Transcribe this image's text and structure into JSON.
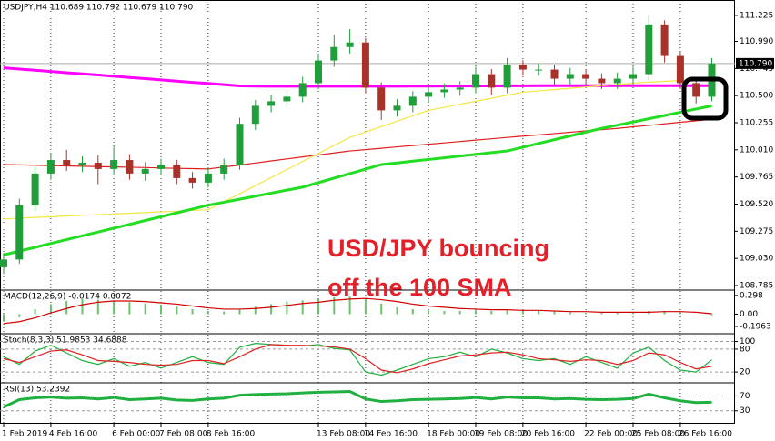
{
  "chart_data": [
    {
      "type": "candlestick",
      "title": "USDJPY,H4  110.689 110.792 110.679 110.790",
      "annotation": [
        "USD/JPY bouncing",
        "off the 100 SMA"
      ],
      "categories": [
        "1 Feb 2019",
        null,
        null,
        "4 Feb 16:00",
        null,
        null,
        null,
        "6 Feb 00:00",
        null,
        null,
        "7 Feb 08:00",
        null,
        null,
        "8 Feb 16:00",
        null,
        null,
        null,
        null,
        null,
        null,
        "13 Feb 08:00",
        null,
        null,
        "14 Feb 16:00",
        null,
        null,
        null,
        "18 Feb 00:00",
        null,
        null,
        "19 Feb 08:00",
        null,
        null,
        "20 Feb 16:00",
        null,
        null,
        null,
        "22 Feb 00:00",
        null,
        null,
        "25 Feb 08:00",
        null,
        null,
        "26 Feb 16:00",
        null,
        null
      ],
      "open": [
        108.95,
        109.02,
        109.51,
        109.796,
        109.918,
        109.877,
        109.894,
        109.837,
        109.918,
        109.796,
        109.837,
        109.877,
        109.755,
        109.714,
        109.796,
        109.877,
        110.245,
        110.408,
        110.449,
        110.49,
        110.613,
        110.817,
        110.939,
        110.98,
        110.572,
        110.367,
        110.408,
        110.49,
        110.531,
        110.555,
        110.572,
        110.694,
        110.572,
        110.776,
        110.735,
        110.735,
        110.653,
        110.694,
        110.653,
        110.613,
        110.653,
        110.694,
        111.143,
        110.858,
        110.613,
        110.49
      ],
      "high": [
        109.08,
        109.57,
        109.86,
        109.98,
        110.01,
        109.95,
        109.96,
        110.04,
        109.97,
        109.9,
        109.93,
        109.92,
        109.81,
        109.85,
        109.93,
        110.3,
        110.46,
        110.51,
        110.55,
        110.67,
        110.88,
        111.05,
        111.1,
        111.02,
        110.62,
        110.47,
        110.54,
        110.58,
        110.61,
        110.63,
        110.76,
        110.74,
        110.84,
        110.82,
        110.79,
        110.78,
        110.75,
        110.74,
        110.7,
        110.71,
        110.76,
        111.23,
        111.18,
        110.9,
        110.66,
        110.84
      ],
      "low": [
        108.89,
        108.98,
        109.46,
        109.74,
        109.82,
        109.81,
        109.7,
        109.78,
        109.74,
        109.73,
        109.78,
        109.7,
        109.66,
        109.67,
        109.74,
        109.83,
        110.19,
        110.35,
        110.39,
        110.44,
        110.56,
        110.76,
        110.88,
        110.52,
        110.28,
        110.31,
        110.35,
        110.44,
        110.48,
        110.5,
        110.52,
        110.51,
        110.52,
        110.68,
        110.68,
        110.6,
        110.6,
        110.6,
        110.56,
        110.56,
        110.6,
        110.64,
        110.8,
        110.56,
        110.43,
        110.45
      ],
      "close": [
        109.02,
        109.51,
        109.796,
        109.918,
        109.877,
        109.894,
        109.837,
        109.918,
        109.796,
        109.837,
        109.877,
        109.755,
        109.714,
        109.796,
        109.877,
        110.245,
        110.408,
        110.449,
        110.49,
        110.613,
        110.817,
        110.939,
        110.98,
        110.572,
        110.367,
        110.408,
        110.49,
        110.531,
        110.555,
        110.572,
        110.694,
        110.572,
        110.776,
        110.735,
        110.735,
        110.653,
        110.694,
        110.653,
        110.613,
        110.653,
        110.694,
        111.143,
        110.858,
        110.613,
        110.49,
        110.79
      ],
      "up_color": "#1f9e3a",
      "down_color": "#a8322a",
      "series": [
        {
          "color": "#ff00ff",
          "style": "line-thick",
          "values": [
            110.751,
            110.74,
            110.729,
            110.718,
            110.707,
            110.697,
            110.686,
            110.675,
            110.664,
            110.653,
            110.642,
            110.631,
            110.62,
            110.61,
            110.599,
            110.588,
            110.586,
            110.585,
            110.585,
            110.585,
            110.585,
            110.585,
            110.585,
            110.585,
            110.585,
            110.585,
            110.586,
            110.586,
            110.587,
            110.587,
            110.588,
            110.588,
            110.589,
            110.589,
            110.59,
            110.59,
            110.59,
            110.59,
            110.59,
            110.59,
            110.59,
            110.59,
            110.59,
            110.59,
            110.59,
            110.59
          ]
        },
        {
          "color": "#e02020",
          "style": "line",
          "values": [
            109.877,
            109.874,
            109.871,
            109.868,
            109.865,
            109.862,
            109.859,
            109.856,
            109.853,
            109.85,
            109.846,
            109.843,
            109.84,
            109.837,
            109.855,
            109.873,
            109.891,
            109.91,
            109.928,
            109.946,
            109.964,
            109.982,
            110.0,
            110.012,
            110.024,
            110.037,
            110.049,
            110.061,
            110.073,
            110.085,
            110.098,
            110.11,
            110.122,
            110.134,
            110.145,
            110.157,
            110.169,
            110.181,
            110.192,
            110.204,
            110.218,
            110.231,
            110.245,
            110.259,
            110.272,
            110.286
          ]
        },
        {
          "color": "#f5e642",
          "style": "line",
          "values": [
            109.387,
            109.393,
            109.4,
            109.406,
            109.412,
            109.419,
            109.425,
            109.431,
            109.437,
            109.444,
            109.45,
            109.456,
            109.463,
            109.469,
            109.542,
            109.614,
            109.687,
            109.759,
            109.832,
            109.905,
            109.977,
            110.05,
            110.122,
            110.171,
            110.22,
            110.269,
            110.318,
            110.367,
            110.394,
            110.422,
            110.449,
            110.476,
            110.504,
            110.531,
            110.543,
            110.554,
            110.566,
            110.578,
            110.59,
            110.601,
            110.613,
            110.621,
            110.629,
            110.637,
            110.645,
            110.653
          ]
        },
        {
          "color": "#22dd22",
          "style": "line-thick",
          "values": [
            109.061,
            109.096,
            109.13,
            109.165,
            109.199,
            109.234,
            109.268,
            109.303,
            109.337,
            109.372,
            109.406,
            109.441,
            109.475,
            109.51,
            109.537,
            109.564,
            109.592,
            109.619,
            109.646,
            109.673,
            109.714,
            109.755,
            109.796,
            109.836,
            109.877,
            109.892,
            109.908,
            109.923,
            109.938,
            109.954,
            109.969,
            109.985,
            110.0,
            110.034,
            110.068,
            110.102,
            110.136,
            110.17,
            110.204,
            110.233,
            110.262,
            110.291,
            110.32,
            110.35,
            110.379,
            110.408
          ]
        }
      ],
      "last_price": 110.79,
      "last_price_label": "110.790",
      "ylim": [
        108.752,
        111.3475
      ],
      "yticks": [
        111.225,
        {
          "value": 110.99,
          "label": "110.990"
        },
        110.745,
        {
          "value": 110.5,
          "label": "110.500"
        },
        110.255,
        {
          "value": 110.01,
          "label": "110.010"
        },
        109.765,
        {
          "value": 109.52,
          "label": "109.520"
        },
        109.275,
        {
          "value": 109.03,
          "label": "109.030"
        },
        108.785
      ],
      "grid": false
    },
    {
      "type": "indicator",
      "title": "MACD(12,26,9) -0.0174 0.0072",
      "series": [
        {
          "color": "#6cc26c",
          "style": "bar",
          "values": [
            -0.12,
            -0.05,
            0.08,
            0.16,
            0.21,
            0.24,
            0.23,
            0.22,
            0.19,
            0.17,
            0.15,
            0.12,
            0.08,
            0.05,
            0.04,
            0.07,
            0.12,
            0.16,
            0.2,
            0.22,
            0.24,
            0.27,
            0.28,
            0.24,
            0.17,
            0.11,
            0.08,
            0.06,
            0.05,
            0.05,
            0.06,
            0.05,
            0.06,
            0.06,
            0.05,
            0.04,
            0.03,
            0.02,
            0.02,
            0.02,
            0.02,
            0.05,
            0.05,
            0.03,
            0.0,
            -0.017
          ]
        },
        {
          "color": "#d00000",
          "style": "line",
          "values": [
            -0.15,
            -0.12,
            -0.06,
            0.02,
            0.09,
            0.15,
            0.19,
            0.21,
            0.21,
            0.2,
            0.18,
            0.16,
            0.13,
            0.1,
            0.08,
            0.08,
            0.09,
            0.11,
            0.14,
            0.17,
            0.19,
            0.22,
            0.24,
            0.25,
            0.23,
            0.2,
            0.16,
            0.13,
            0.11,
            0.09,
            0.08,
            0.07,
            0.07,
            0.06,
            0.06,
            0.05,
            0.04,
            0.04,
            0.03,
            0.03,
            0.03,
            0.03,
            0.04,
            0.04,
            0.03,
            0.007
          ]
        }
      ],
      "ylim": [
        -0.298,
        0.369
      ],
      "yticks": [
        0.298,
        {
          "value": 0,
          "label": "0.00"
        },
        -0.1963
      ],
      "grid": false
    },
    {
      "type": "indicator",
      "title": "Stoch(8,3,3) 51.9853 34.6888",
      "series": [
        {
          "color": "#20b040",
          "style": "line",
          "values": [
            60,
            40,
            75,
            90,
            70,
            50,
            40,
            55,
            35,
            45,
            30,
            45,
            60,
            45,
            40,
            85,
            95,
            92,
            90,
            88,
            92,
            82,
            78,
            20,
            12,
            25,
            40,
            55,
            60,
            72,
            60,
            80,
            70,
            55,
            50,
            55,
            40,
            60,
            45,
            30,
            70,
            85,
            50,
            25,
            20,
            52
          ]
        },
        {
          "color": "#e02020",
          "style": "line",
          "values": [
            55,
            45,
            60,
            75,
            78,
            65,
            50,
            48,
            45,
            40,
            38,
            40,
            50,
            50,
            42,
            60,
            80,
            92,
            90,
            90,
            88,
            86,
            80,
            55,
            25,
            18,
            28,
            42,
            52,
            62,
            65,
            70,
            72,
            65,
            55,
            52,
            48,
            52,
            50,
            40,
            50,
            70,
            65,
            45,
            28,
            35
          ]
        }
      ],
      "ylim": [
        -6,
        118
      ],
      "yticks": [
        100,
        80,
        20
      ],
      "grid": true
    },
    {
      "type": "indicator",
      "title": "RSI(13) 53.2392",
      "series": [
        {
          "color": "#20b040",
          "style": "line-thick",
          "values": [
            40,
            60,
            65,
            67,
            64,
            65,
            62,
            66,
            60,
            62,
            64,
            59,
            58,
            62,
            64,
            72,
            74,
            75,
            76,
            78,
            80,
            81,
            82,
            62,
            55,
            57,
            60,
            61,
            62,
            63,
            66,
            62,
            67,
            65,
            65,
            62,
            63,
            61,
            60,
            61,
            63,
            75,
            65,
            57,
            52,
            53
          ]
        }
      ],
      "ylim": [
        -5,
        103
      ],
      "yticks": [
        70,
        30
      ],
      "grid": true
    }
  ]
}
